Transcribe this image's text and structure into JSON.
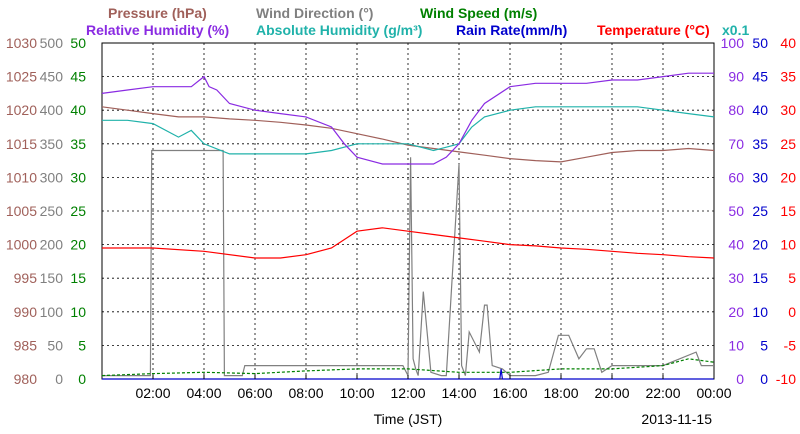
{
  "chart_data": {
    "type": "line",
    "date": "2013-11-15",
    "xlabel": "Time (JST)",
    "x_range_hours": [
      0,
      24
    ],
    "x_ticks": [
      "02:00",
      "04:00",
      "06:00",
      "08:00",
      "10:00",
      "12:00",
      "14:00",
      "16:00",
      "18:00",
      "20:00",
      "22:00",
      "00:00"
    ],
    "grid": true,
    "legend_rows": [
      [
        {
          "name": "Pressure (hPa)",
          "color": "#a0605a"
        },
        {
          "name": "Wind Direction (°)",
          "color": "#808080"
        },
        {
          "name": "Wind Speed (m/s)",
          "color": "#008000"
        }
      ],
      [
        {
          "name": "Relative Humidity (%)",
          "color": "#8a2be2"
        },
        {
          "name": "Absolute Humidity (g/m³)",
          "color": "#20b2aa"
        },
        {
          "name": "Rain Rate(mm/h)",
          "color": "#0000cc"
        },
        {
          "name": "Temperature (°C)",
          "color": "#ff0000"
        },
        {
          "name": "x0.1",
          "color": "#20b2aa"
        }
      ]
    ],
    "axes": {
      "pressure": {
        "min": 980,
        "max": 1030,
        "ticks": [
          "980",
          "985",
          "990",
          "995",
          "1000",
          "1005",
          "1010",
          "1015",
          "1020",
          "1025",
          "1030"
        ],
        "color": "#a0605a",
        "side": "left"
      },
      "wind_direction": {
        "min": 0,
        "max": 500,
        "ticks": [
          "0",
          "50",
          "100",
          "150",
          "200",
          "250",
          "300",
          "350",
          "400",
          "450",
          "500"
        ],
        "color": "#808080",
        "side": "left"
      },
      "wind_speed": {
        "min": 0,
        "max": 50,
        "ticks": [
          "0",
          "5",
          "10",
          "15",
          "20",
          "25",
          "30",
          "35",
          "40",
          "45",
          "50"
        ],
        "color": "#008000",
        "side": "left"
      },
      "relative_humidity": {
        "min": 0,
        "max": 100,
        "ticks": [
          "0",
          "10",
          "20",
          "30",
          "40",
          "50",
          "60",
          "70",
          "80",
          "90",
          "100"
        ],
        "color": "#8a2be2",
        "side": "right"
      },
      "rain_rate": {
        "min": 0,
        "max": 50,
        "ticks": [
          "0",
          "5",
          "10",
          "15",
          "20",
          "25",
          "30",
          "35",
          "40",
          "45",
          "50"
        ],
        "color": "#0000cc",
        "side": "right"
      },
      "temperature": {
        "min": -10,
        "max": 40,
        "ticks": [
          "-10",
          "-5",
          "0",
          "5",
          "10",
          "15",
          "20",
          "25",
          "30",
          "35",
          "40"
        ],
        "color": "#ff0000",
        "side": "right"
      }
    },
    "series": [
      {
        "name": "Pressure (hPa)",
        "axis": "pressure",
        "color": "#a0605a",
        "x": [
          0,
          1,
          2,
          3,
          4,
          5,
          6,
          7,
          8,
          9,
          10,
          11,
          12,
          13,
          14,
          15,
          16,
          17,
          18,
          19,
          20,
          21,
          22,
          23,
          24
        ],
        "y": [
          1020.5,
          1020,
          1019.5,
          1019,
          1019,
          1018.7,
          1018.5,
          1018.2,
          1017.8,
          1017.3,
          1016.5,
          1015.7,
          1014.8,
          1014.3,
          1013.8,
          1013.3,
          1012.8,
          1012.5,
          1012.3,
          1013,
          1013.7,
          1014,
          1014,
          1014.3,
          1014
        ]
      },
      {
        "name": "Wind Direction (°)",
        "axis": "wind_direction",
        "color": "#808080",
        "x": [
          0,
          1.9,
          1.95,
          4.75,
          4.8,
          5.5,
          5.6,
          11.8,
          12.0,
          12.1,
          12.2,
          12.3,
          12.4,
          12.6,
          12.9,
          13.3,
          13.5,
          14.0,
          14.1,
          14.25,
          14.4,
          14.8,
          15.0,
          15.1,
          15.3,
          15.7,
          16.0,
          17.0,
          17.5,
          17.9,
          18.3,
          18.7,
          19.0,
          19.3,
          19.6,
          20.0,
          22.0,
          23.3,
          23.5,
          24
        ],
        "y": [
          5,
          5,
          340,
          340,
          5,
          5,
          20,
          20,
          5,
          330,
          30,
          15,
          5,
          130,
          10,
          5,
          5,
          320,
          20,
          5,
          70,
          40,
          110,
          110,
          20,
          15,
          5,
          5,
          10,
          65,
          65,
          30,
          45,
          45,
          10,
          20,
          20,
          40,
          20,
          20
        ]
      },
      {
        "name": "Wind Speed (m/s)",
        "axis": "wind_speed",
        "color": "#008000",
        "x": [
          0,
          2,
          4,
          6,
          8,
          10,
          12,
          14,
          16,
          18,
          20,
          22,
          23,
          24
        ],
        "y": [
          0.5,
          0.8,
          1.0,
          0.8,
          1.2,
          1.5,
          1.5,
          1.0,
          1.0,
          1.5,
          1.5,
          2.0,
          3.0,
          2.5
        ]
      },
      {
        "name": "Relative Humidity (%)",
        "axis": "relative_humidity",
        "color": "#8a2be2",
        "x": [
          0,
          1,
          2,
          3.5,
          4,
          4.2,
          4.5,
          5,
          6,
          7,
          8,
          9,
          9.5,
          10,
          11,
          12,
          13,
          13.5,
          14,
          14.5,
          15,
          16,
          17,
          18,
          19,
          20,
          21,
          22,
          23,
          24
        ],
        "y": [
          85,
          86,
          87,
          87,
          90,
          87,
          86,
          82,
          80,
          79,
          78,
          75,
          70,
          66,
          64,
          64,
          64,
          66,
          70,
          77,
          82,
          87,
          88,
          88,
          88,
          89,
          89,
          90,
          91,
          91
        ]
      },
      {
        "name": "Absolute Humidity (g/m³)",
        "axis": "relative_humidity",
        "color": "#20b2aa",
        "x": [
          0,
          1,
          2,
          3,
          3.5,
          4,
          5,
          6,
          7,
          8,
          9,
          10,
          11,
          12,
          13,
          13.5,
          14,
          14.5,
          15,
          16,
          17,
          18,
          20,
          21,
          22,
          23,
          24
        ],
        "y": [
          77,
          77,
          76,
          72,
          74,
          70,
          67,
          67,
          67,
          67,
          68,
          70,
          70,
          70,
          68,
          69,
          70,
          75,
          78,
          80,
          81,
          81,
          81,
          81,
          80,
          79,
          78
        ]
      },
      {
        "name": "Rain Rate(mm/h)",
        "axis": "rain_rate",
        "color": "#0000cc",
        "x": [
          0,
          15.6,
          15.65,
          15.7,
          24
        ],
        "y": [
          0,
          0,
          1.5,
          0,
          0
        ]
      },
      {
        "name": "Temperature (°C)",
        "axis": "temperature",
        "color": "#ff0000",
        "x": [
          0,
          2,
          4,
          6,
          7,
          8,
          9,
          10,
          11,
          12,
          13,
          14,
          15,
          16,
          17,
          18,
          19,
          20,
          21,
          22,
          23,
          24
        ],
        "y": [
          9.5,
          9.5,
          9,
          8,
          8,
          8.5,
          9.5,
          12,
          12.5,
          12,
          11.5,
          11,
          10.5,
          10,
          9.8,
          9.5,
          9.3,
          9,
          8.7,
          8.5,
          8.2,
          8
        ]
      }
    ]
  }
}
